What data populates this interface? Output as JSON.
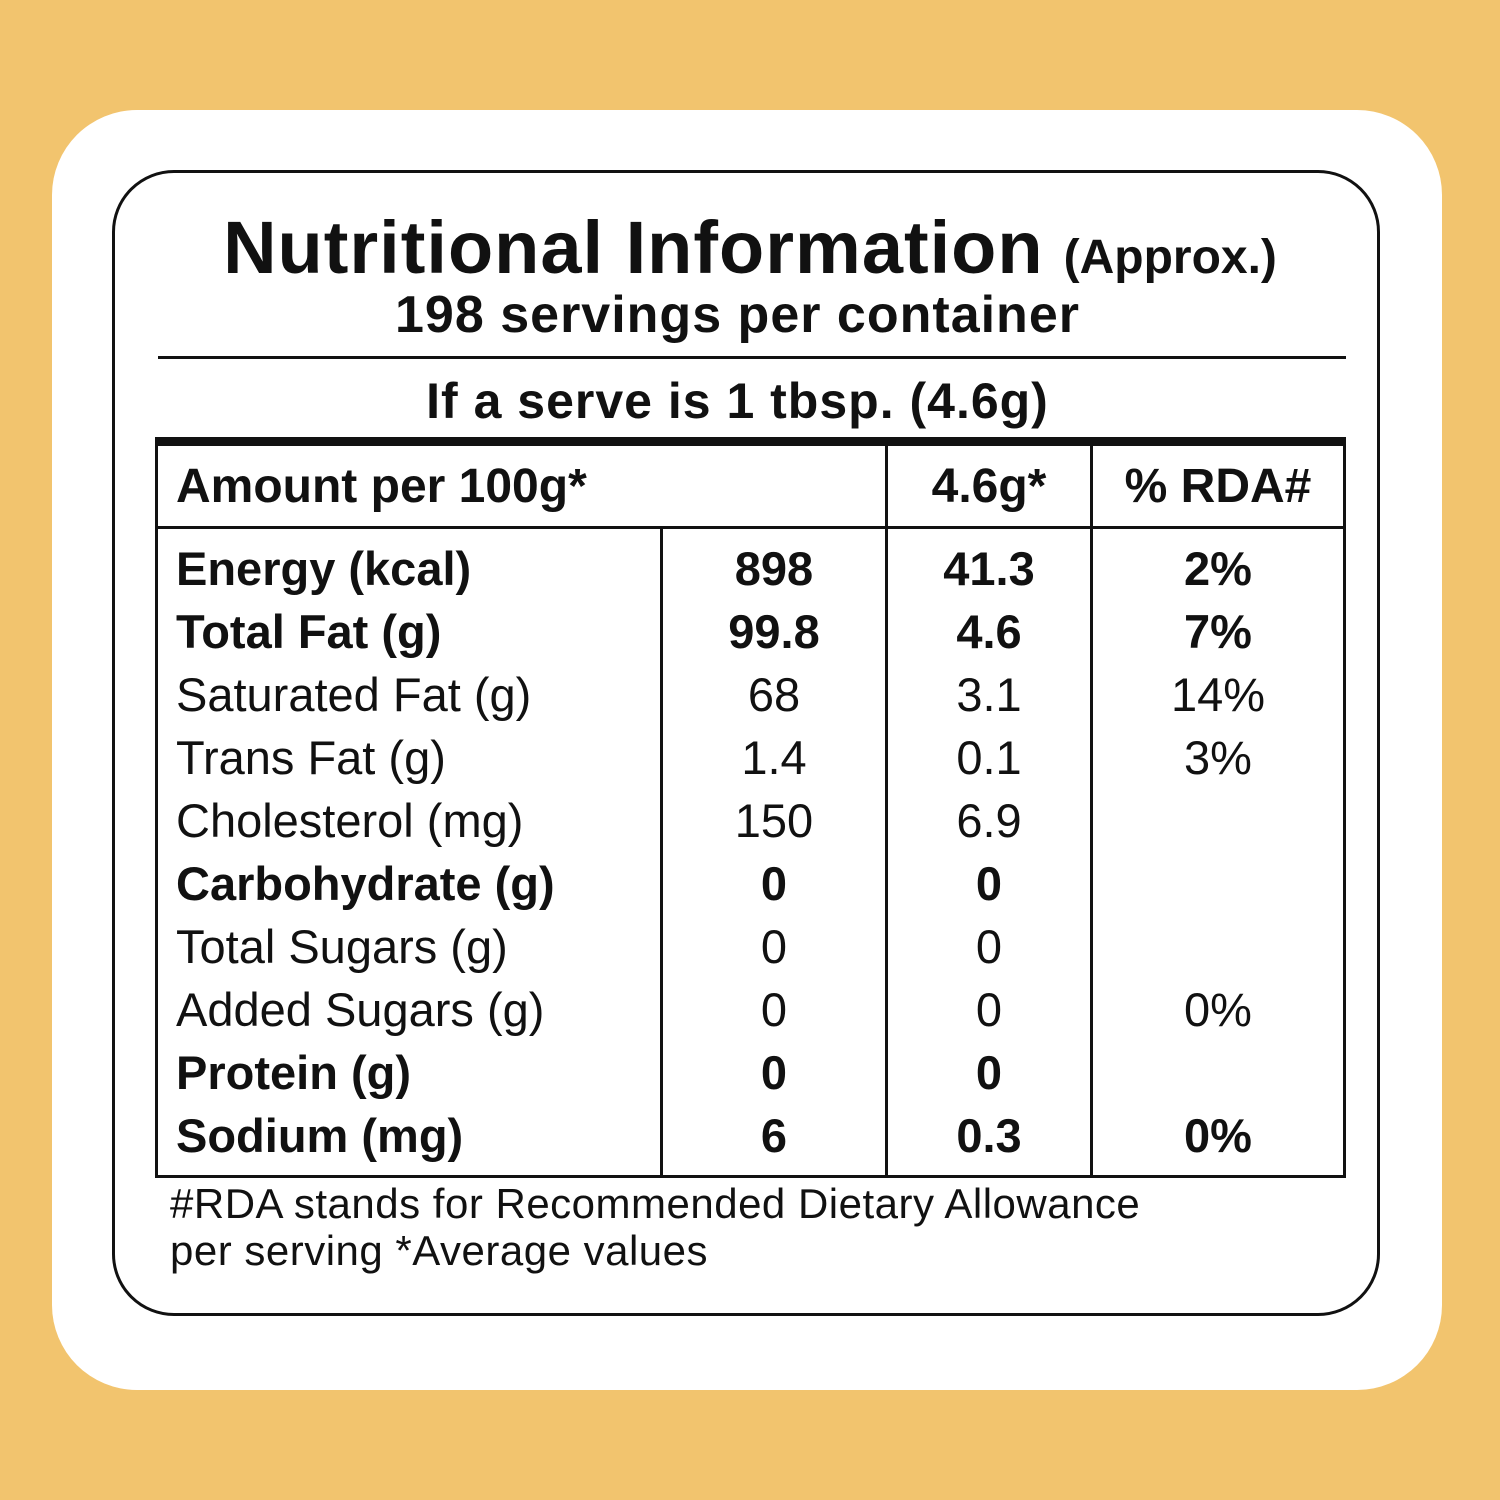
{
  "header": {
    "title": "Nutritional Information",
    "qualifier": "(Approx.)",
    "servings": "198 servings per container",
    "serve": "If a serve is 1 tbsp. (4.6g)"
  },
  "table": {
    "headers": [
      "Amount per 100g*",
      "4.6g*",
      "% RDA#"
    ],
    "rows": [
      {
        "cells": [
          "Energy (kcal)",
          "898",
          "41.3",
          "2%"
        ],
        "bold": true
      },
      {
        "cells": [
          "Total Fat (g)",
          "99.8",
          "4.6",
          "7%"
        ],
        "bold": true
      },
      {
        "cells": [
          "Saturated Fat (g)",
          "68",
          "3.1",
          "14%"
        ],
        "bold": false
      },
      {
        "cells": [
          "Trans Fat (g)",
          "1.4",
          "0.1",
          "3%"
        ],
        "bold": false
      },
      {
        "cells": [
          "Cholesterol (mg)",
          "150",
          "6.9",
          null
        ],
        "bold": false
      },
      {
        "cells": [
          "Carbohydrate (g)",
          "0",
          "0",
          null
        ],
        "bold": true
      },
      {
        "cells": [
          "Total Sugars (g)",
          "0",
          "0",
          null
        ],
        "bold": false
      },
      {
        "cells": [
          "Added Sugars (g)",
          "0",
          "0",
          "0%"
        ],
        "bold": false
      },
      {
        "cells": [
          "Protein (g)",
          "0",
          "0",
          null
        ],
        "bold": true
      },
      {
        "cells": [
          "Sodium (mg)",
          "6",
          "0.3",
          "0%"
        ],
        "bold": true
      }
    ]
  },
  "footnote": {
    "lines": [
      "#RDA stands for Recommended Dietary Allowance",
      "per serving *Average values"
    ]
  }
}
